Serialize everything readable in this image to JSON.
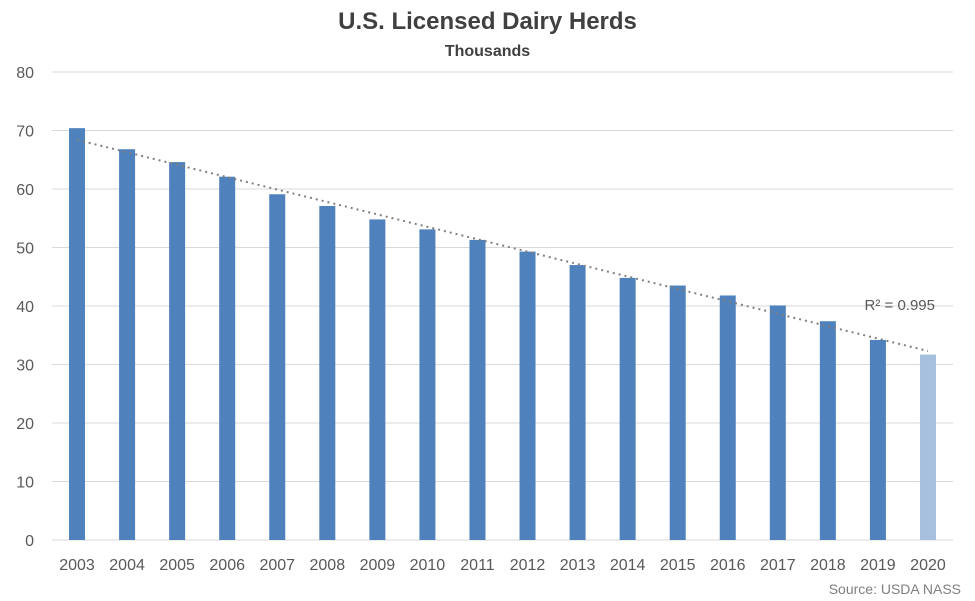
{
  "chart_data": {
    "type": "bar",
    "title": "U.S. Licensed Dairy Herds",
    "subtitle": "Thousands",
    "categories": [
      "2003",
      "2004",
      "2005",
      "2006",
      "2007",
      "2008",
      "2009",
      "2010",
      "2011",
      "2012",
      "2013",
      "2014",
      "2015",
      "2016",
      "2017",
      "2018",
      "2019",
      "2020"
    ],
    "values": [
      70.4,
      66.8,
      64.6,
      62.1,
      59.1,
      57.1,
      54.8,
      53.1,
      51.3,
      49.3,
      47.0,
      44.8,
      43.5,
      41.8,
      40.1,
      37.4,
      34.2,
      31.7
    ],
    "ylim": [
      0,
      80
    ],
    "yticks": [
      0,
      10,
      20,
      30,
      40,
      50,
      60,
      70,
      80
    ],
    "grid": true,
    "colors": {
      "bar": "#4f81bd",
      "highlight_bar": "#a7c0de",
      "trend": "#808080"
    },
    "highlight_index": 17,
    "trendline": {
      "type": "linear",
      "start": 68.4,
      "end": 32.3,
      "r_squared_label": "R² = 0.995"
    },
    "source": "Source: USDA NASS"
  }
}
